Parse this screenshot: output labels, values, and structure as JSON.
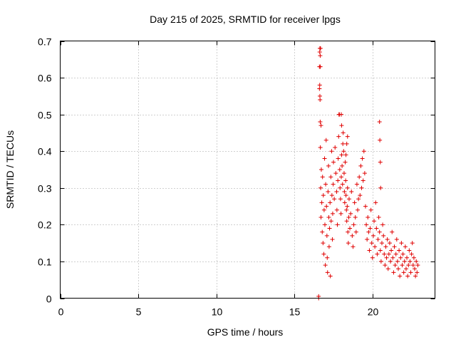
{
  "chart_data": {
    "type": "scatter",
    "title": "Day 215 of 2025, SRMTID for receiver lpgs",
    "xlabel": "GPS time / hours",
    "ylabel": "SRMTID / TECUs",
    "xlim": [
      0,
      24
    ],
    "ylim": [
      0,
      0.7
    ],
    "xticks": [
      0,
      5,
      10,
      15,
      20
    ],
    "yticks": [
      0,
      0.1,
      0.2,
      0.3,
      0.4,
      0.5,
      0.6,
      0.7
    ],
    "xtick_labels": [
      "0",
      "5",
      "10",
      "15",
      "20"
    ],
    "ytick_labels": [
      "0",
      "0.1",
      "0.2",
      "0.3",
      "0.4",
      "0.5",
      "0.6",
      "0.7"
    ],
    "grid": true,
    "marker": "+",
    "color": "#e00000",
    "series": [
      {
        "name": "SRMTID",
        "x": [
          16.55,
          16.55,
          16.6,
          16.6,
          16.62,
          16.63,
          16.64,
          16.65,
          16.66,
          16.68,
          16.7,
          16.72,
          16.75,
          16.78,
          16.8,
          16.83,
          16.85,
          16.88,
          16.9,
          16.93,
          16.95,
          16.98,
          17.0,
          17.03,
          17.05,
          17.08,
          17.1,
          17.12,
          17.15,
          17.18,
          17.2,
          17.22,
          17.25,
          17.28,
          17.3,
          17.33,
          17.35,
          17.38,
          17.4,
          17.43,
          17.45,
          17.48,
          17.5,
          17.55,
          17.6,
          17.65,
          17.7,
          17.72,
          17.75,
          17.78,
          17.8,
          17.83,
          17.85,
          17.88,
          17.9,
          17.92,
          17.95,
          17.98,
          18.0,
          18.02,
          18.05,
          18.08,
          18.1,
          18.12,
          18.15,
          18.18,
          18.2,
          18.22,
          18.25,
          18.28,
          18.3,
          18.33,
          18.35,
          18.38,
          18.4,
          18.42,
          18.45,
          18.48,
          18.5,
          18.55,
          18.6,
          18.65,
          18.7,
          18.75,
          18.8,
          18.85,
          18.9,
          18.95,
          19.0,
          19.05,
          19.1,
          19.15,
          19.2,
          19.25,
          19.3,
          19.35,
          19.4,
          19.45,
          19.5,
          19.55,
          19.6,
          19.65,
          19.7,
          19.75,
          19.8,
          19.85,
          19.9,
          19.95,
          20.0,
          20.05,
          20.1,
          20.15,
          20.2,
          20.25,
          20.3,
          20.35,
          20.4,
          20.45,
          20.5,
          20.55,
          20.6,
          20.65,
          20.7,
          20.75,
          20.8,
          20.85,
          20.9,
          20.95,
          21.0,
          21.05,
          21.1,
          21.15,
          21.2,
          21.25,
          21.3,
          21.35,
          21.4,
          21.45,
          21.5,
          21.55,
          21.6,
          21.65,
          21.7,
          21.75,
          21.8,
          21.85,
          21.9,
          21.95,
          22.0,
          22.05,
          22.1,
          22.15,
          22.2,
          22.25,
          22.3,
          22.35,
          22.4,
          22.45,
          22.5,
          22.55,
          22.6,
          22.65,
          22.7,
          22.75,
          22.8,
          22.85,
          22.9,
          20.45,
          20.47,
          20.5,
          20.52,
          16.65,
          16.66,
          16.67,
          16.62,
          16.63,
          16.7,
          18.0,
          18.02,
          18.3,
          18.35,
          18.4
        ],
        "y": [
          0.0,
          0.005,
          0.63,
          0.57,
          0.67,
          0.68,
          0.54,
          0.48,
          0.41,
          0.3,
          0.22,
          0.35,
          0.26,
          0.18,
          0.33,
          0.15,
          0.28,
          0.12,
          0.24,
          0.38,
          0.2,
          0.09,
          0.31,
          0.43,
          0.25,
          0.17,
          0.11,
          0.07,
          0.29,
          0.36,
          0.22,
          0.14,
          0.19,
          0.26,
          0.06,
          0.33,
          0.21,
          0.4,
          0.28,
          0.16,
          0.23,
          0.31,
          0.37,
          0.27,
          0.41,
          0.34,
          0.29,
          0.24,
          0.2,
          0.32,
          0.38,
          0.44,
          0.5,
          0.5,
          0.35,
          0.3,
          0.27,
          0.23,
          0.33,
          0.39,
          0.36,
          0.31,
          0.42,
          0.45,
          0.4,
          0.34,
          0.29,
          0.26,
          0.37,
          0.32,
          0.28,
          0.24,
          0.21,
          0.25,
          0.3,
          0.18,
          0.15,
          0.22,
          0.27,
          0.19,
          0.23,
          0.29,
          0.17,
          0.14,
          0.2,
          0.26,
          0.22,
          0.18,
          0.31,
          0.24,
          0.27,
          0.33,
          0.28,
          0.36,
          0.3,
          0.38,
          0.32,
          0.4,
          0.34,
          0.25,
          0.2,
          0.16,
          0.22,
          0.18,
          0.13,
          0.19,
          0.24,
          0.15,
          0.11,
          0.17,
          0.21,
          0.14,
          0.26,
          0.19,
          0.12,
          0.16,
          0.22,
          0.18,
          0.13,
          0.1,
          0.15,
          0.2,
          0.17,
          0.12,
          0.09,
          0.14,
          0.11,
          0.16,
          0.08,
          0.12,
          0.15,
          0.1,
          0.13,
          0.18,
          0.11,
          0.07,
          0.14,
          0.09,
          0.12,
          0.16,
          0.1,
          0.08,
          0.13,
          0.06,
          0.11,
          0.15,
          0.09,
          0.12,
          0.07,
          0.1,
          0.14,
          0.08,
          0.11,
          0.06,
          0.09,
          0.13,
          0.1,
          0.07,
          0.12,
          0.15,
          0.09,
          0.11,
          0.08,
          0.06,
          0.1,
          0.07,
          0.09,
          0.48,
          0.43,
          0.37,
          0.3,
          0.66,
          0.63,
          0.68,
          0.58,
          0.55,
          0.47,
          0.5,
          0.47,
          0.39,
          0.42,
          0.44
        ]
      }
    ]
  }
}
